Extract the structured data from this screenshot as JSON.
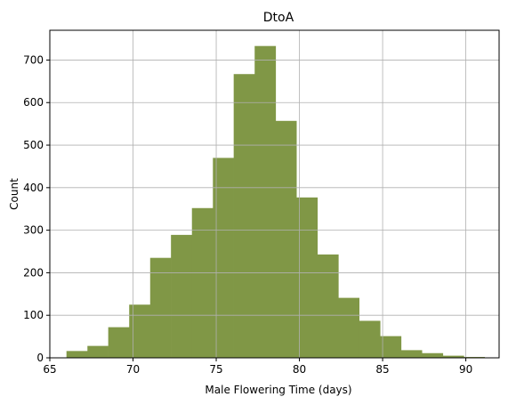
{
  "chart_data": {
    "type": "bar",
    "title": "DtoA",
    "xlabel": "Male Flowering Time (days)",
    "ylabel": "Count",
    "xlim": [
      65,
      92
    ],
    "ylim": [
      0,
      770
    ],
    "xticks": [
      65,
      70,
      75,
      80,
      85,
      90
    ],
    "yticks": [
      0,
      100,
      200,
      300,
      400,
      500,
      600,
      700
    ],
    "grid": true,
    "bar_color": "#809746",
    "bins": [
      {
        "x0": 66.0,
        "x1": 67.26,
        "count": 16
      },
      {
        "x0": 67.26,
        "x1": 68.51,
        "count": 28
      },
      {
        "x0": 68.51,
        "x1": 69.77,
        "count": 72
      },
      {
        "x0": 69.77,
        "x1": 71.03,
        "count": 125
      },
      {
        "x0": 71.03,
        "x1": 72.28,
        "count": 235
      },
      {
        "x0": 72.28,
        "x1": 73.54,
        "count": 289
      },
      {
        "x0": 73.54,
        "x1": 74.8,
        "count": 352
      },
      {
        "x0": 74.8,
        "x1": 76.05,
        "count": 470
      },
      {
        "x0": 76.05,
        "x1": 77.31,
        "count": 667
      },
      {
        "x0": 77.31,
        "x1": 78.57,
        "count": 733
      },
      {
        "x0": 78.57,
        "x1": 79.82,
        "count": 557
      },
      {
        "x0": 79.82,
        "x1": 81.08,
        "count": 377
      },
      {
        "x0": 81.08,
        "x1": 82.34,
        "count": 243
      },
      {
        "x0": 82.34,
        "x1": 83.59,
        "count": 141
      },
      {
        "x0": 83.59,
        "x1": 84.85,
        "count": 87
      },
      {
        "x0": 84.85,
        "x1": 86.11,
        "count": 51
      },
      {
        "x0": 86.11,
        "x1": 87.36,
        "count": 18
      },
      {
        "x0": 87.36,
        "x1": 88.62,
        "count": 11
      },
      {
        "x0": 88.62,
        "x1": 89.88,
        "count": 5
      },
      {
        "x0": 89.88,
        "x1": 91.13,
        "count": 2
      }
    ]
  }
}
